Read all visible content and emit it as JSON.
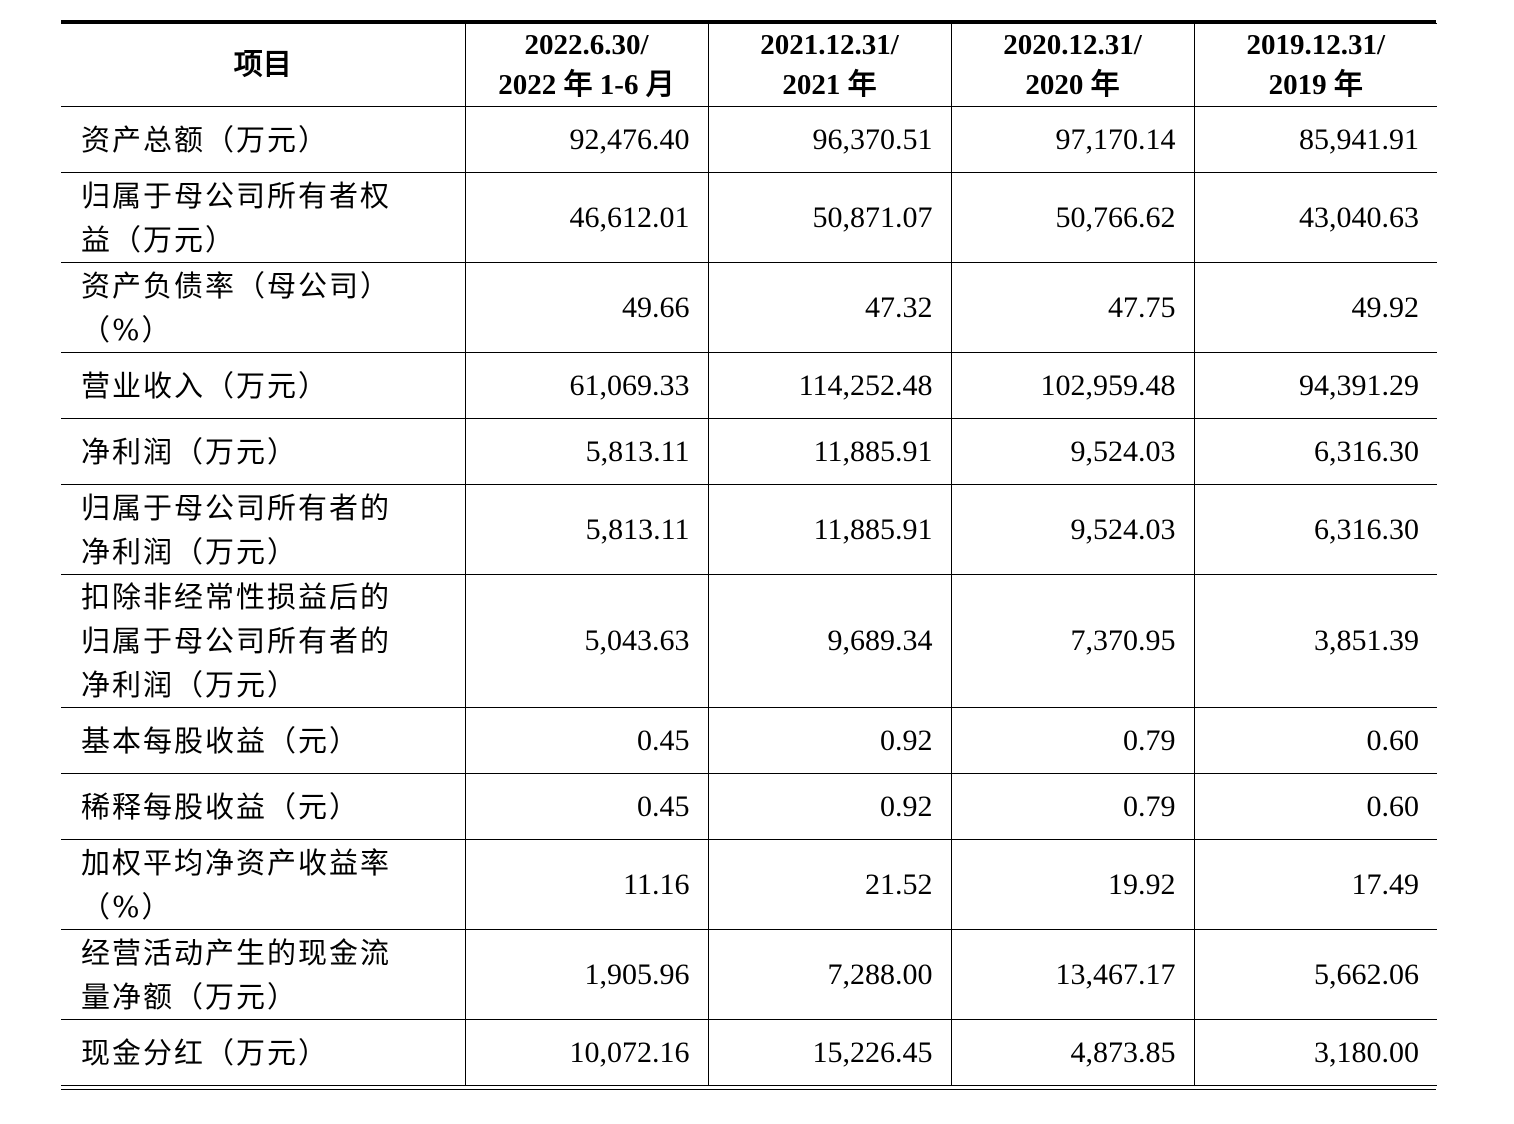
{
  "table": {
    "headers": [
      {
        "line1": "项目",
        "line2": ""
      },
      {
        "line1": "2022.6.30/",
        "line2": "2022 年 1-6 月"
      },
      {
        "line1": "2021.12.31/",
        "line2": "2021 年"
      },
      {
        "line1": "2020.12.31/",
        "line2": "2020 年"
      },
      {
        "line1": "2019.12.31/",
        "line2": "2019 年"
      }
    ],
    "rows": [
      {
        "label_lines": [
          "资产总额（万元）"
        ],
        "h": 66,
        "values": [
          "92,476.40",
          "96,370.51",
          "97,170.14",
          "85,941.91"
        ]
      },
      {
        "label_lines": [
          "归属于母公司所有者权",
          "益（万元）"
        ],
        "h": 90,
        "values": [
          "46,612.01",
          "50,871.07",
          "50,766.62",
          "43,040.63"
        ]
      },
      {
        "label_lines": [
          "资产负债率（母公司）",
          "（%）"
        ],
        "h": 90,
        "values": [
          "49.66",
          "47.32",
          "47.75",
          "49.92"
        ]
      },
      {
        "label_lines": [
          "营业收入（万元）"
        ],
        "h": 66,
        "values": [
          "61,069.33",
          "114,252.48",
          "102,959.48",
          "94,391.29"
        ]
      },
      {
        "label_lines": [
          "净利润（万元）"
        ],
        "h": 66,
        "values": [
          "5,813.11",
          "11,885.91",
          "9,524.03",
          "6,316.30"
        ]
      },
      {
        "label_lines": [
          "归属于母公司所有者的",
          "净利润（万元）"
        ],
        "h": 90,
        "values": [
          "5,813.11",
          "11,885.91",
          "9,524.03",
          "6,316.30"
        ]
      },
      {
        "label_lines": [
          "扣除非经常性损益后的",
          "归属于母公司所有者的",
          "净利润（万元）"
        ],
        "h": 133,
        "values": [
          "5,043.63",
          "9,689.34",
          "7,370.95",
          "3,851.39"
        ]
      },
      {
        "label_lines": [
          "基本每股收益（元）"
        ],
        "h": 66,
        "values": [
          "0.45",
          "0.92",
          "0.79",
          "0.60"
        ]
      },
      {
        "label_lines": [
          "稀释每股收益（元）"
        ],
        "h": 66,
        "values": [
          "0.45",
          "0.92",
          "0.79",
          "0.60"
        ]
      },
      {
        "label_lines": [
          "加权平均净资产收益率",
          "（%）"
        ],
        "h": 90,
        "values": [
          "11.16",
          "21.52",
          "19.92",
          "17.49"
        ]
      },
      {
        "label_lines": [
          "经营活动产生的现金流",
          "量净额（万元）"
        ],
        "h": 90,
        "values": [
          "1,905.96",
          "7,288.00",
          "13,467.17",
          "5,662.06"
        ]
      },
      {
        "label_lines": [
          "现金分红（万元）"
        ],
        "h": 66,
        "values": [
          "10,072.16",
          "15,226.45",
          "4,873.85",
          "3,180.00"
        ]
      }
    ]
  }
}
